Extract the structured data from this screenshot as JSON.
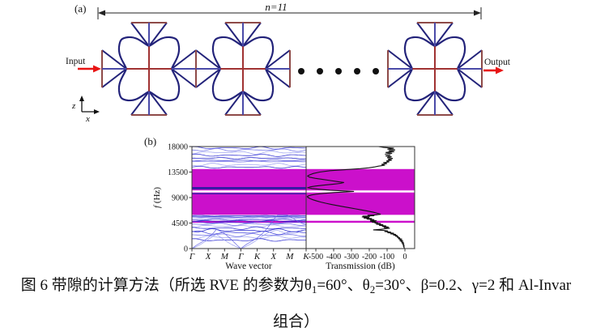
{
  "figure_a": {
    "panel_label": "(a)",
    "dimension_label": "n=11",
    "input_label": "Input",
    "output_label": "Output",
    "axis": {
      "z": "z",
      "x": "x"
    },
    "dots_count": 5,
    "colors": {
      "frame_navy": "#23237a",
      "cross_red": "#a03232",
      "bar_maroon": "#8e4a48",
      "link_blue": "#4a4aa8",
      "arrow_red": "#e81414",
      "dimension": "#222222",
      "dot": "#111111"
    }
  },
  "figure_b": {
    "panel_label": "(b)"
  },
  "chart_data": [
    {
      "type": "line",
      "title": "band structure",
      "xlabel": "Wave vector",
      "ylabel_f": "f",
      "ylabel_unit": " (Hz)",
      "x_ticks": [
        "Γ",
        "X",
        "M",
        "Γ",
        "K",
        "X",
        "M",
        "K"
      ],
      "y_ticks": [
        0,
        4500,
        9000,
        13500,
        18000
      ],
      "ylim": [
        0,
        18000
      ],
      "grid": false,
      "band_gaps_hz": [
        {
          "from": 5950,
          "to": 14030
        },
        {
          "from": 4550,
          "to": 4900
        }
      ],
      "pass_band_hz": {
        "from": 9900,
        "to": 10250
      },
      "flat_bands_hz": [
        10750,
        10550,
        9700
      ],
      "gap_color": "#cb10cb",
      "pass_band_edge_color": "#f2a0ee",
      "flat_band_color": "#1b1b9e",
      "band_colors": [
        "#1414c8",
        "#3c3cd8",
        "#6b6be6",
        "#9aa0ef",
        "#2a2ad2"
      ],
      "acoustic_scales": [
        5200,
        3200
      ],
      "lower_bands": [
        {
          "b": 5780,
          "a": 70,
          "p": 0.3
        },
        {
          "b": 5620,
          "a": 80,
          "p": 2.1
        },
        {
          "b": 5480,
          "a": 60,
          "p": 4.2
        },
        {
          "b": 5320,
          "a": 90,
          "p": 1.2
        },
        {
          "b": 5100,
          "a": 130,
          "p": 3.3
        },
        {
          "b": 4850,
          "a": 160,
          "p": 5.1
        },
        {
          "b": 4600,
          "a": 180,
          "p": 0.9
        },
        {
          "b": 4300,
          "a": 220,
          "p": 2.7
        },
        {
          "b": 3950,
          "a": 260,
          "p": 4.8
        },
        {
          "b": 3600,
          "a": 280,
          "p": 1.7
        },
        {
          "b": 3200,
          "a": 300,
          "p": 3.9
        },
        {
          "b": 2800,
          "a": 320,
          "p": 0.5
        },
        {
          "b": 2400,
          "a": 300,
          "p": 2.3
        },
        {
          "b": 2000,
          "a": 280,
          "p": 4.4
        },
        {
          "b": 1500,
          "a": 260,
          "p": 1.1
        }
      ],
      "upper_bands": [
        {
          "b": 17750,
          "a": 230,
          "p": 1.0
        },
        {
          "b": 17400,
          "a": 260,
          "p": 3.2
        },
        {
          "b": 16950,
          "a": 300,
          "p": 5.0
        },
        {
          "b": 16450,
          "a": 220,
          "p": 0.7
        },
        {
          "b": 15950,
          "a": 160,
          "p": 2.5
        },
        {
          "b": 15550,
          "a": 110,
          "p": 4.6
        },
        {
          "b": 15350,
          "a": 90,
          "p": 1.9
        },
        {
          "b": 14800,
          "a": 260,
          "p": 3.8
        },
        {
          "b": 14350,
          "a": 180,
          "p": 0.2
        }
      ]
    },
    {
      "type": "line",
      "title": "transmission",
      "xlabel": "Transmission (dB)",
      "x_ticks": [
        -500,
        -400,
        -300,
        -200,
        -100,
        0
      ],
      "xlim": [
        -560,
        55
      ],
      "line_color": "#141414",
      "points_f_db": [
        [
          18000,
          -148
        ],
        [
          17850,
          -120
        ],
        [
          17700,
          -62
        ],
        [
          17550,
          -98
        ],
        [
          17400,
          -55
        ],
        [
          17250,
          -92
        ],
        [
          17100,
          -60
        ],
        [
          16950,
          -108
        ],
        [
          16800,
          -72
        ],
        [
          16650,
          -112
        ],
        [
          16500,
          -82
        ],
        [
          16350,
          -108
        ],
        [
          16200,
          -75
        ],
        [
          16050,
          -100
        ],
        [
          15900,
          -68
        ],
        [
          15750,
          -96
        ],
        [
          15600,
          -74
        ],
        [
          15450,
          -104
        ],
        [
          15300,
          -88
        ],
        [
          15150,
          -122
        ],
        [
          15000,
          -100
        ],
        [
          14850,
          -132
        ],
        [
          14700,
          -112
        ],
        [
          14550,
          -148
        ],
        [
          14400,
          -170
        ],
        [
          14250,
          -205
        ],
        [
          14100,
          -252
        ],
        [
          13950,
          -320
        ],
        [
          13750,
          -420
        ],
        [
          13500,
          -478
        ],
        [
          13250,
          -515
        ],
        [
          13000,
          -535
        ],
        [
          12800,
          -546
        ],
        [
          12600,
          -536
        ],
        [
          12400,
          -505
        ],
        [
          12200,
          -462
        ],
        [
          12000,
          -418
        ],
        [
          11800,
          -375
        ],
        [
          11650,
          -342
        ],
        [
          11500,
          -362
        ],
        [
          11350,
          -405
        ],
        [
          11200,
          -452
        ],
        [
          11050,
          -498
        ],
        [
          10900,
          -530
        ],
        [
          10750,
          -544
        ],
        [
          10600,
          -522
        ],
        [
          10450,
          -478
        ],
        [
          10300,
          -420
        ],
        [
          10180,
          -352
        ],
        [
          10080,
          -286
        ],
        [
          9980,
          -330
        ],
        [
          9880,
          -398
        ],
        [
          9750,
          -455
        ],
        [
          9600,
          -498
        ],
        [
          9450,
          -525
        ],
        [
          9300,
          -542
        ],
        [
          9150,
          -548
        ],
        [
          9000,
          -543
        ],
        [
          8800,
          -532
        ],
        [
          8600,
          -515
        ],
        [
          8400,
          -495
        ],
        [
          8200,
          -472
        ],
        [
          8000,
          -445
        ],
        [
          7800,
          -415
        ],
        [
          7600,
          -382
        ],
        [
          7400,
          -348
        ],
        [
          7200,
          -312
        ],
        [
          7000,
          -276
        ],
        [
          6800,
          -240
        ],
        [
          6600,
          -206
        ],
        [
          6400,
          -176
        ],
        [
          6200,
          -152
        ],
        [
          6050,
          -136
        ],
        [
          5950,
          -162
        ],
        [
          5870,
          -210
        ],
        [
          5800,
          -172
        ],
        [
          5730,
          -238
        ],
        [
          5650,
          -196
        ],
        [
          5570,
          -242
        ],
        [
          5480,
          -200
        ],
        [
          5390,
          -232
        ],
        [
          5300,
          -185
        ],
        [
          5200,
          -215
        ],
        [
          5100,
          -172
        ],
        [
          5000,
          -195
        ],
        [
          4900,
          -158
        ],
        [
          4820,
          -196
        ],
        [
          4740,
          -165
        ],
        [
          4660,
          -185
        ],
        [
          4580,
          -152
        ],
        [
          4500,
          -170
        ],
        [
          4400,
          -135
        ],
        [
          4300,
          -162
        ],
        [
          4200,
          -122
        ],
        [
          4100,
          -145
        ],
        [
          4000,
          -105
        ],
        [
          3900,
          -128
        ],
        [
          3800,
          -92
        ],
        [
          3700,
          -118
        ],
        [
          3600,
          -85
        ],
        [
          3500,
          -110
        ],
        [
          3400,
          -135
        ],
        [
          3300,
          -178
        ],
        [
          3200,
          -120
        ],
        [
          3100,
          -95
        ],
        [
          3000,
          -115
        ],
        [
          2900,
          -78
        ],
        [
          2800,
          -98
        ],
        [
          2700,
          -62
        ],
        [
          2600,
          -82
        ],
        [
          2500,
          -50
        ],
        [
          2400,
          -66
        ],
        [
          2300,
          -42
        ],
        [
          2200,
          -55
        ],
        [
          2100,
          -35
        ],
        [
          2000,
          -45
        ],
        [
          1900,
          -28
        ],
        [
          1800,
          -38
        ],
        [
          1700,
          -22
        ],
        [
          1600,
          -30
        ],
        [
          1500,
          -18
        ],
        [
          1400,
          -26
        ],
        [
          1300,
          -14
        ],
        [
          1200,
          -20
        ],
        [
          1100,
          -10
        ],
        [
          1000,
          -16
        ],
        [
          900,
          -8
        ],
        [
          800,
          -12
        ],
        [
          700,
          -6
        ],
        [
          600,
          -10
        ],
        [
          500,
          -5
        ],
        [
          400,
          -8
        ],
        [
          300,
          -4
        ],
        [
          200,
          -6
        ],
        [
          100,
          -3
        ],
        [
          0,
          -3
        ]
      ]
    }
  ],
  "caption": {
    "line1_pre": "图 6 带隙的计算方法（所选 RVE 的参数为θ",
    "sub1": "1",
    "mid1": "=60°、θ",
    "sub2": "2",
    "mid2": "=30°、β=0.2、γ=2 和 Al-Invar",
    "line2": "组合）"
  }
}
